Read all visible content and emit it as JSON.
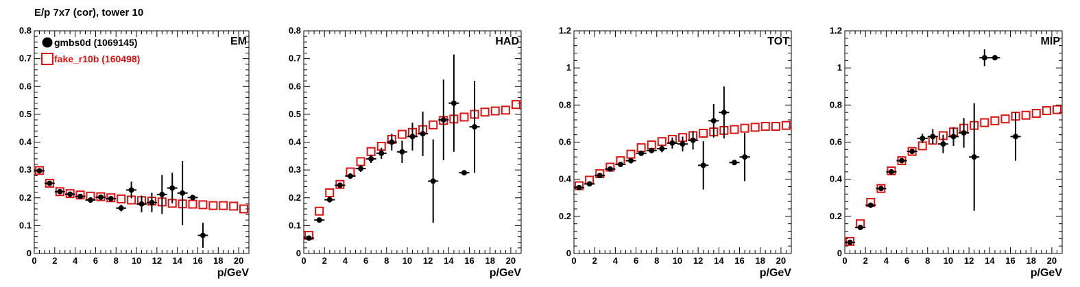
{
  "title": "E/p 7x7 (cor), tower 10",
  "legend": {
    "series_a": "gmbs0d (1069145)",
    "series_b": "fake_r10b (160498)"
  },
  "colors": {
    "series_a": "#000000",
    "series_b": "#dd1111",
    "axis": "#000000"
  },
  "chart_data": [
    {
      "type": "scatter",
      "panel_label": "EM",
      "xlabel": "p/GeV",
      "xlim": [
        0,
        21
      ],
      "ylim": [
        0,
        0.8
      ],
      "xticks": [
        0,
        2,
        4,
        6,
        8,
        10,
        12,
        14,
        16,
        18,
        20
      ],
      "yticks": [
        0,
        0.1,
        0.2,
        0.3,
        0.4,
        0.5,
        0.6,
        0.7,
        0.8
      ],
      "ytick_labels": [
        "0",
        "0.1",
        "0.2",
        "0.3",
        "0.4",
        "0.5",
        "0.6",
        "0.7",
        "0.8"
      ],
      "series": [
        {
          "name": "gmbs0d (1069145)",
          "marker": "filled-circle",
          "x": [
            0.5,
            1.5,
            2.5,
            3.5,
            4.5,
            5.5,
            6.5,
            7.5,
            8.5,
            9.5,
            10.5,
            11.5,
            12.5,
            13.5,
            14.5,
            15.5,
            16.5
          ],
          "y": [
            0.297,
            0.252,
            0.222,
            0.213,
            0.205,
            0.192,
            0.202,
            0.197,
            0.163,
            0.228,
            0.178,
            0.183,
            0.212,
            0.235,
            0.217,
            0.201,
            0.065
          ],
          "err": [
            0.008,
            0.007,
            0.006,
            0.006,
            0.006,
            0.008,
            0.008,
            0.01,
            0.012,
            0.03,
            0.03,
            0.035,
            0.07,
            0.055,
            0.115,
            0.008,
            0.045
          ]
        },
        {
          "name": "fake_r10b (160498)",
          "marker": "open-square",
          "x": [
            0.5,
            1.5,
            2.5,
            3.5,
            4.5,
            5.5,
            6.5,
            7.5,
            8.5,
            9.5,
            10.5,
            11.5,
            12.5,
            13.5,
            14.5,
            15.5,
            16.5,
            17.5,
            18.5,
            19.5,
            20.5
          ],
          "y": [
            0.298,
            0.252,
            0.222,
            0.215,
            0.21,
            0.206,
            0.204,
            0.2,
            0.196,
            0.192,
            0.19,
            0.188,
            0.185,
            0.18,
            0.178,
            0.177,
            0.175,
            0.172,
            0.172,
            0.17,
            0.16
          ],
          "err": []
        }
      ]
    },
    {
      "type": "scatter",
      "panel_label": "HAD",
      "xlabel": "p/GeV",
      "xlim": [
        0,
        21
      ],
      "ylim": [
        0,
        0.8
      ],
      "xticks": [
        0,
        2,
        4,
        6,
        8,
        10,
        12,
        14,
        16,
        18,
        20
      ],
      "yticks": [
        0,
        0.1,
        0.2,
        0.3,
        0.4,
        0.5,
        0.6,
        0.7,
        0.8
      ],
      "ytick_labels": [
        "0",
        "0.1",
        "0.2",
        "0.3",
        "0.4",
        "0.5",
        "0.6",
        "0.7",
        "0.8"
      ],
      "series": [
        {
          "name": "gmbs0d (1069145)",
          "marker": "filled-circle",
          "x": [
            0.5,
            1.5,
            2.5,
            3.5,
            4.5,
            5.5,
            6.5,
            7.5,
            8.5,
            9.5,
            10.5,
            11.5,
            12.5,
            13.5,
            14.5,
            15.5,
            16.5
          ],
          "y": [
            0.055,
            0.12,
            0.193,
            0.245,
            0.278,
            0.305,
            0.34,
            0.36,
            0.4,
            0.365,
            0.42,
            0.43,
            0.26,
            0.48,
            0.54,
            0.29,
            0.455
          ],
          "err": [
            0.005,
            0.008,
            0.01,
            0.01,
            0.01,
            0.012,
            0.015,
            0.02,
            0.03,
            0.04,
            0.05,
            0.08,
            0.15,
            0.145,
            0.175,
            0.005,
            0.165
          ]
        },
        {
          "name": "fake_r10b (160498)",
          "marker": "open-square",
          "x": [
            0.5,
            1.5,
            2.5,
            3.5,
            4.5,
            5.5,
            6.5,
            7.5,
            8.5,
            9.5,
            10.5,
            11.5,
            12.5,
            13.5,
            14.5,
            15.5,
            16.5,
            17.5,
            18.5,
            19.5,
            20.5
          ],
          "y": [
            0.065,
            0.152,
            0.218,
            0.248,
            0.293,
            0.33,
            0.366,
            0.385,
            0.41,
            0.428,
            0.435,
            0.445,
            0.462,
            0.478,
            0.483,
            0.49,
            0.5,
            0.508,
            0.512,
            0.515,
            0.535
          ],
          "err": []
        }
      ]
    },
    {
      "type": "scatter",
      "panel_label": "TOT",
      "xlabel": "p/GeV",
      "xlim": [
        0,
        21
      ],
      "ylim": [
        0,
        1.2
      ],
      "xticks": [
        0,
        2,
        4,
        6,
        8,
        10,
        12,
        14,
        16,
        18,
        20
      ],
      "yticks": [
        0,
        0.2,
        0.4,
        0.6,
        0.8,
        1.0,
        1.2
      ],
      "ytick_labels": [
        "0",
        "0.2",
        "0.4",
        "0.6",
        "0.8",
        "1",
        "1.2"
      ],
      "series": [
        {
          "name": "gmbs0d (1069145)",
          "marker": "filled-circle",
          "x": [
            0.5,
            1.5,
            2.5,
            3.5,
            4.5,
            5.5,
            6.5,
            7.5,
            8.5,
            9.5,
            10.5,
            11.5,
            12.5,
            13.5,
            14.5,
            15.5,
            16.5
          ],
          "y": [
            0.355,
            0.375,
            0.42,
            0.455,
            0.48,
            0.5,
            0.54,
            0.555,
            0.565,
            0.595,
            0.59,
            0.61,
            0.475,
            0.715,
            0.76,
            0.49,
            0.52
          ],
          "err": [
            0.008,
            0.008,
            0.008,
            0.008,
            0.01,
            0.01,
            0.012,
            0.015,
            0.02,
            0.03,
            0.04,
            0.05,
            0.13,
            0.09,
            0.14,
            0.008,
            0.13
          ]
        },
        {
          "name": "fake_r10b (160498)",
          "marker": "open-square",
          "x": [
            0.5,
            1.5,
            2.5,
            3.5,
            4.5,
            5.5,
            6.5,
            7.5,
            8.5,
            9.5,
            10.5,
            11.5,
            12.5,
            13.5,
            14.5,
            15.5,
            16.5,
            17.5,
            18.5,
            19.5,
            20.5
          ],
          "y": [
            0.365,
            0.395,
            0.43,
            0.465,
            0.5,
            0.535,
            0.57,
            0.585,
            0.603,
            0.615,
            0.625,
            0.635,
            0.648,
            0.655,
            0.663,
            0.668,
            0.675,
            0.68,
            0.685,
            0.685,
            0.69
          ],
          "err": []
        }
      ]
    },
    {
      "type": "scatter",
      "panel_label": "MIP",
      "xlabel": "p/GeV",
      "xlim": [
        0,
        21
      ],
      "ylim": [
        0,
        1.2
      ],
      "xticks": [
        0,
        2,
        4,
        6,
        8,
        10,
        12,
        14,
        16,
        18,
        20
      ],
      "yticks": [
        0,
        0.2,
        0.4,
        0.6,
        0.8,
        1.0,
        1.2
      ],
      "ytick_labels": [
        "0",
        "0.2",
        "0.4",
        "0.6",
        "0.8",
        "1",
        "1.2"
      ],
      "series": [
        {
          "name": "gmbs0d (1069145)",
          "marker": "filled-circle",
          "x": [
            0.5,
            1.5,
            2.5,
            3.5,
            4.5,
            5.5,
            6.5,
            7.5,
            8.5,
            9.5,
            10.5,
            11.5,
            12.5,
            13.5,
            14.5,
            16.5
          ],
          "y": [
            0.06,
            0.14,
            0.26,
            0.35,
            0.44,
            0.5,
            0.55,
            0.62,
            0.63,
            0.59,
            0.63,
            0.65,
            0.52,
            1.055,
            1.055,
            0.63
          ],
          "err": [
            0.008,
            0.01,
            0.01,
            0.01,
            0.01,
            0.012,
            0.015,
            0.025,
            0.04,
            0.05,
            0.05,
            0.08,
            0.29,
            0.045,
            0.008,
            0.13
          ]
        },
        {
          "name": "fake_r10b (160498)",
          "marker": "open-square",
          "x": [
            0.5,
            1.5,
            2.5,
            3.5,
            4.5,
            5.5,
            6.5,
            7.5,
            8.5,
            9.5,
            10.5,
            11.5,
            12.5,
            13.5,
            14.5,
            15.5,
            16.5,
            17.5,
            18.5,
            19.5,
            20.5
          ],
          "y": [
            0.065,
            0.16,
            0.275,
            0.35,
            0.445,
            0.5,
            0.55,
            0.58,
            0.61,
            0.635,
            0.655,
            0.675,
            0.69,
            0.705,
            0.715,
            0.725,
            0.74,
            0.745,
            0.755,
            0.77,
            0.775
          ],
          "err": []
        }
      ]
    }
  ]
}
